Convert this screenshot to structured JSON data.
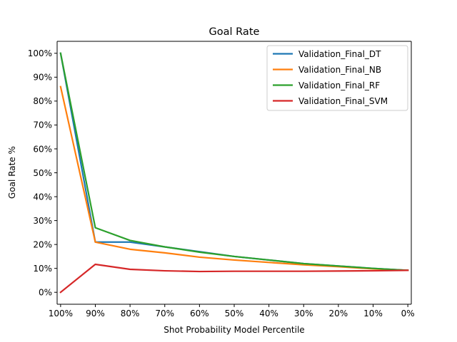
{
  "chart_data": {
    "type": "line",
    "title": "Goal Rate",
    "xlabel": "Shot Probability Model Percentile",
    "ylabel": "Goal Rate %",
    "x": [
      100,
      90,
      80,
      70,
      60,
      50,
      40,
      30,
      20,
      10,
      0
    ],
    "x_ticks": [
      "100%",
      "90%",
      "80%",
      "70%",
      "60%",
      "50%",
      "40%",
      "30%",
      "20%",
      "10%",
      "0%"
    ],
    "xlim": [
      101,
      -1
    ],
    "ylim": [
      -5,
      105
    ],
    "y_ticks": [
      "0%",
      "10%",
      "20%",
      "30%",
      "40%",
      "50%",
      "60%",
      "70%",
      "80%",
      "90%",
      "100%"
    ],
    "y_tick_values": [
      0,
      10,
      20,
      30,
      40,
      50,
      60,
      70,
      80,
      90,
      100
    ],
    "grid": false,
    "legend_position": "upper right",
    "series": [
      {
        "name": "Validation_Final_DT",
        "color": "#1f77b4",
        "values": [
          100,
          21,
          21,
          19,
          17,
          15,
          13.5,
          12,
          11,
          10,
          9.2
        ]
      },
      {
        "name": "Validation_Final_NB",
        "color": "#ff7f0e",
        "values": [
          86,
          21,
          18,
          16.5,
          14.7,
          13.5,
          12.5,
          11.5,
          10.7,
          9.8,
          9.2
        ]
      },
      {
        "name": "Validation_Final_RF",
        "color": "#2ca02c",
        "values": [
          100,
          27,
          21.7,
          19,
          16.8,
          15,
          13.5,
          12,
          11,
          10,
          9.2
        ]
      },
      {
        "name": "Validation_Final_SVM",
        "color": "#d62728",
        "values": [
          0,
          11.7,
          9.6,
          9,
          8.7,
          8.8,
          8.8,
          8.8,
          8.9,
          9,
          9.2
        ]
      }
    ]
  }
}
